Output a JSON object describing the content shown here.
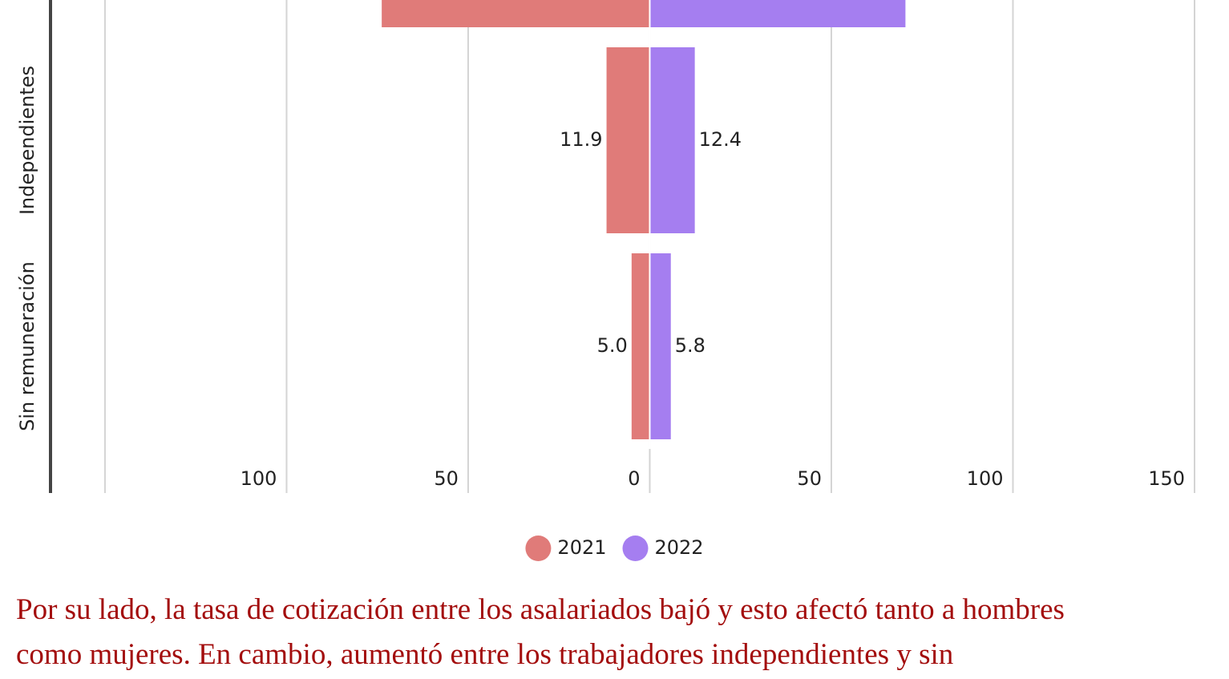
{
  "chart_data": {
    "type": "butterfly_bar",
    "categories": [
      null,
      "Independientes",
      "Sin remuneración"
    ],
    "series": [
      {
        "name": "2021",
        "color": "#e07b79",
        "side": "left",
        "values": [
          73.8,
          11.9,
          5.0
        ],
        "value_labels": [
          null,
          "11.9",
          "5.0"
        ]
      },
      {
        "name": "2022",
        "color": "#a57ef0",
        "side": "right",
        "values": [
          70.4,
          12.4,
          5.8
        ],
        "value_labels": [
          null,
          "12.4",
          "5.8"
        ]
      }
    ],
    "xlim": [
      -165,
      150
    ],
    "xticks": [
      {
        "value": -100,
        "label": "100"
      },
      {
        "value": -50,
        "label": "50"
      },
      0,
      50,
      100,
      150
    ],
    "xgrid": [
      -150,
      -100,
      -50,
      0,
      50,
      100,
      150
    ],
    "grid": true,
    "legend": "bottom"
  },
  "paragraph": {
    "lines": [
      "Por su lado, la tasa de cotización entre los asalariados bajó y esto afectó tanto a hombres",
      "como mujeres. En cambio, aumentó entre los trabajadores independientes y sin"
    ]
  }
}
